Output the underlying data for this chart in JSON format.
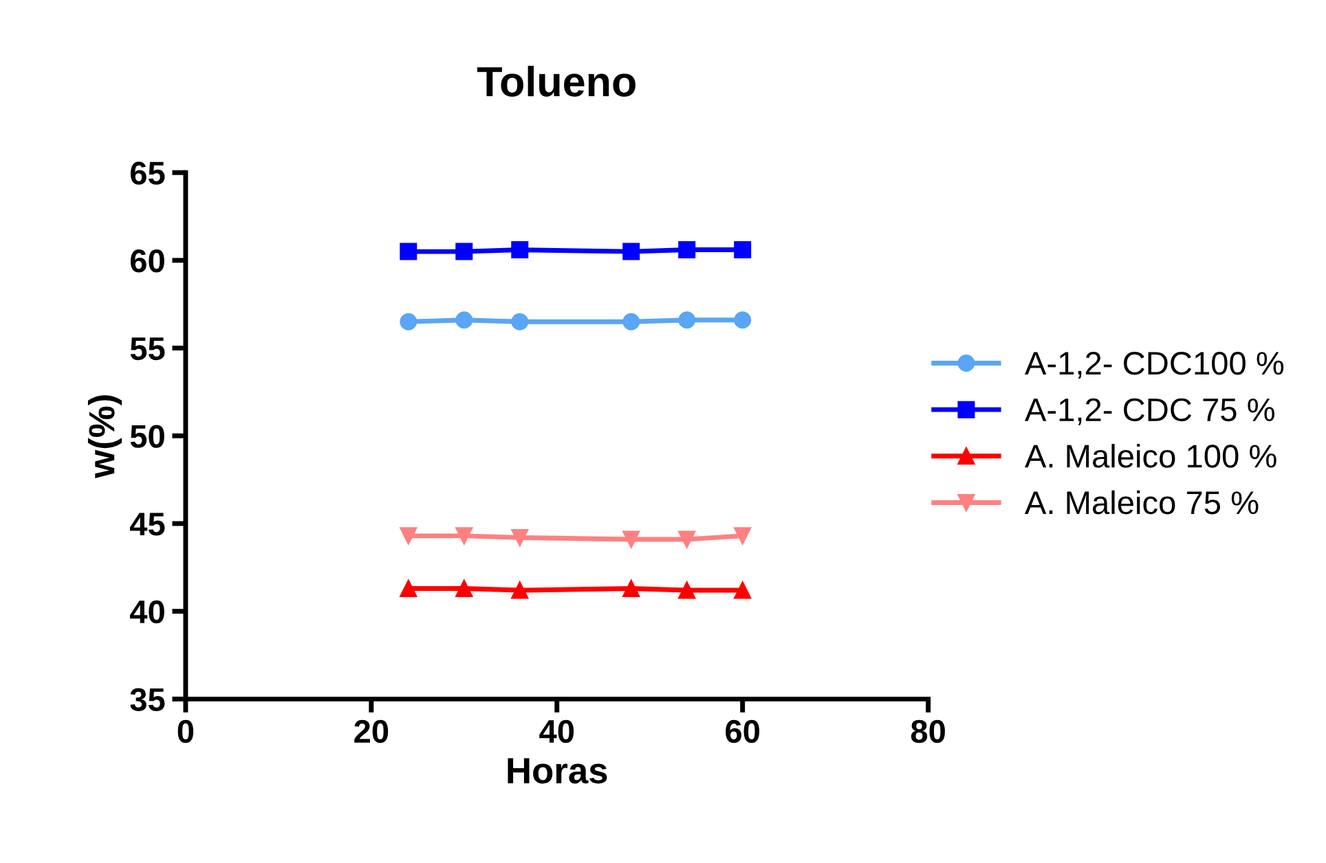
{
  "chart_data": {
    "type": "line",
    "title": "Tolueno",
    "xlabel": "Horas",
    "ylabel": "w(%)",
    "x": [
      24,
      30,
      36,
      48,
      54,
      60
    ],
    "series": [
      {
        "name": "A-1,2- CDC100 %",
        "color": "#5aa5f5",
        "marker": "circle",
        "values": [
          56.5,
          56.6,
          56.5,
          56.5,
          56.6,
          56.6
        ]
      },
      {
        "name": "A-1,2- CDC 75 %",
        "color": "#0000ff",
        "marker": "square",
        "values": [
          60.5,
          60.5,
          60.6,
          60.5,
          60.6,
          60.6
        ]
      },
      {
        "name": "A. Maleico 100 %",
        "color": "#ff0000",
        "marker": "triangle",
        "values": [
          41.3,
          41.3,
          41.2,
          41.3,
          41.2,
          41.2
        ]
      },
      {
        "name": "A. Maleico 75 %",
        "color": "#ff8080",
        "marker": "triangle_down",
        "values": [
          44.3,
          44.3,
          44.2,
          44.1,
          44.1,
          44.3
        ]
      }
    ],
    "xlim": [
      0,
      80
    ],
    "xticks": [
      0,
      20,
      40,
      60,
      80
    ],
    "ylim": [
      35,
      65
    ],
    "yticks": [
      35,
      40,
      45,
      50,
      55,
      60,
      65
    ],
    "grid": false,
    "legend": "right",
    "line_style": "solid"
  }
}
